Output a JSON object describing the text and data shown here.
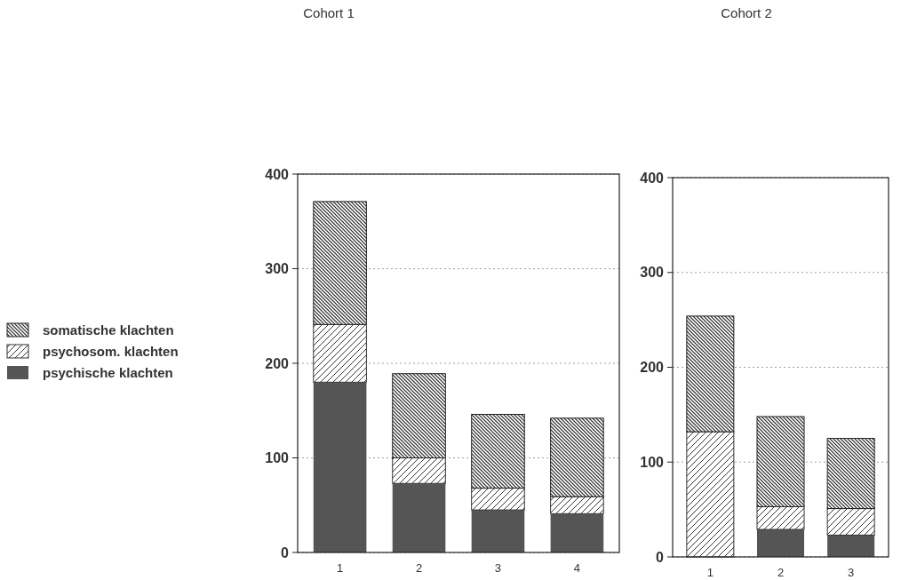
{
  "chart_data": [
    {
      "type": "bar",
      "title": "Cohort 1",
      "categories": [
        "1",
        "2",
        "3",
        "4"
      ],
      "stacked": true,
      "legend": "left",
      "grid": "y",
      "ylim": [
        0,
        400
      ],
      "yticks": [
        0,
        100,
        200,
        300,
        400
      ],
      "series": [
        {
          "name": "psychische klachten",
          "color": "#555555",
          "values": [
            180,
            73,
            45,
            41
          ]
        },
        {
          "name": "psychosom. klachten",
          "color": "#333333",
          "values": [
            61,
            27,
            23,
            18
          ]
        },
        {
          "name": "somatische klachten",
          "color": "#222222",
          "values": [
            130,
            89,
            78,
            83
          ]
        }
      ]
    },
    {
      "type": "bar",
      "title": "Cohort 2",
      "categories": [
        "1",
        "2",
        "3"
      ],
      "stacked": true,
      "grid": "y",
      "ylim": [
        0,
        400
      ],
      "yticks": [
        0,
        100,
        200,
        300,
        400
      ],
      "series": [
        {
          "color": "#555555",
          "values": [
            0,
            29,
            23
          ]
        },
        {
          "color": "#333333",
          "values": [
            132,
            24,
            28
          ]
        },
        {
          "color": "#222222",
          "values": [
            122,
            95,
            74
          ]
        }
      ]
    }
  ]
}
